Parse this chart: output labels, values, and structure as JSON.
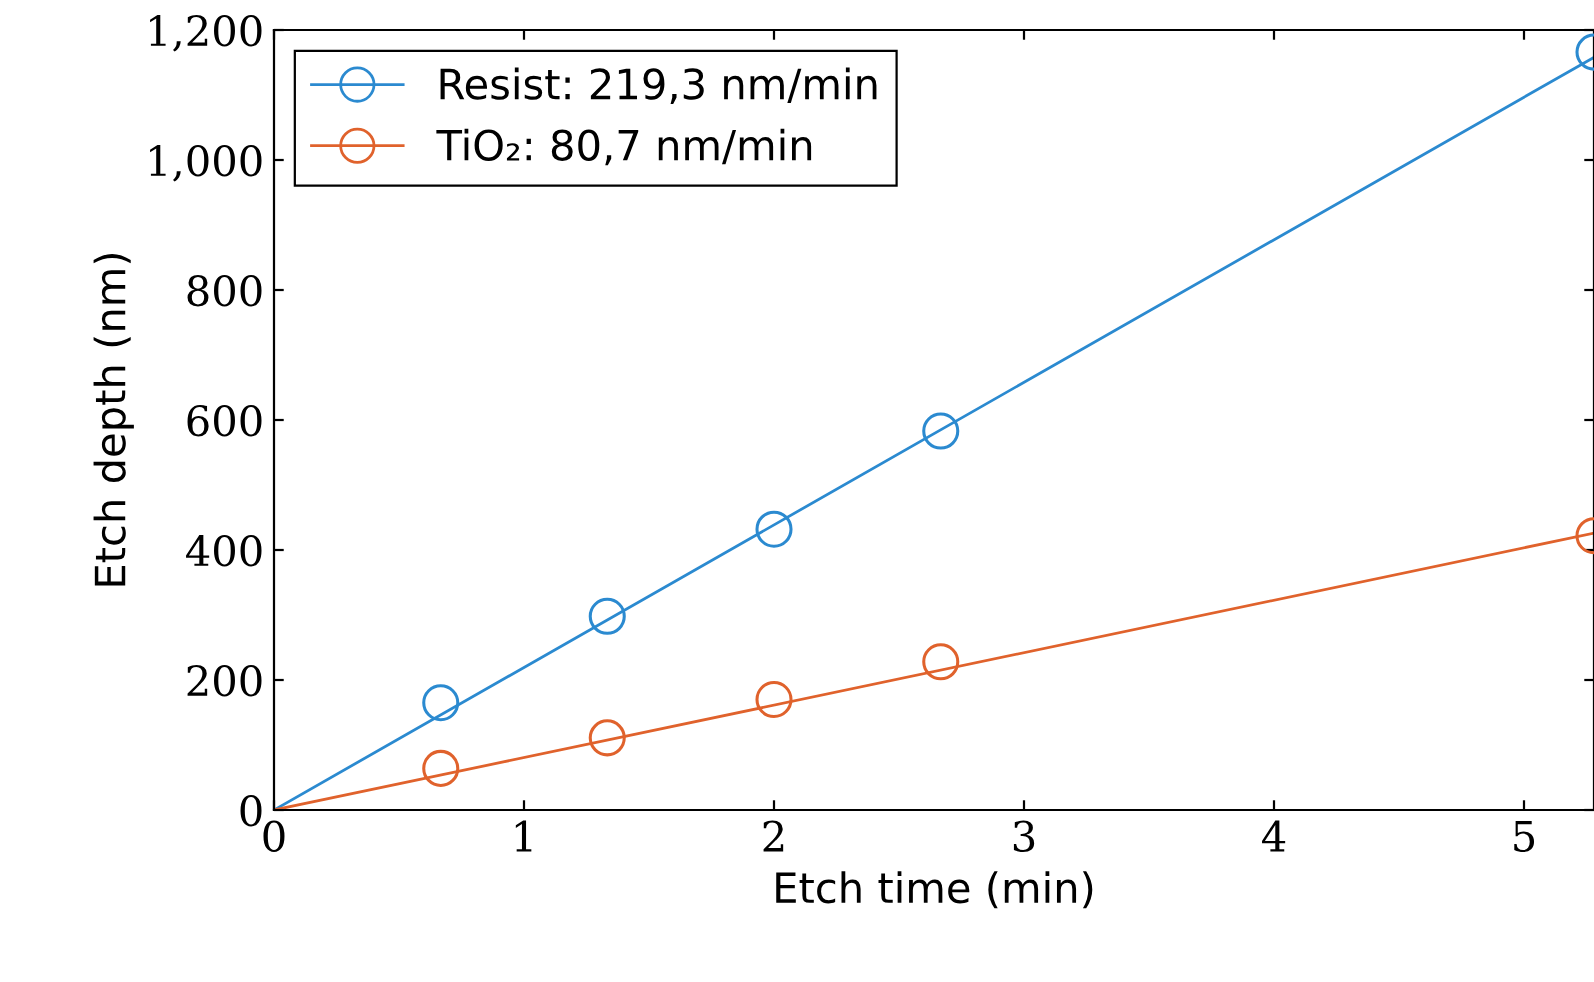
{
  "chart_data": {
    "type": "line",
    "xlabel": "Etch time (min)",
    "ylabel": "Etch depth (nm)",
    "xlim": [
      0,
      5.28
    ],
    "ylim": [
      0,
      1200
    ],
    "xticks": [
      0,
      1,
      2,
      3,
      4,
      5
    ],
    "yticks": [
      0,
      200,
      400,
      600,
      800,
      {
        "value": 1000,
        "label": "1,000"
      },
      {
        "value": 1200,
        "label": "1,200"
      }
    ],
    "grid": false,
    "legend": "top left",
    "series": [
      {
        "name": "Resist: 219,3 nm/min",
        "type": "scatter",
        "marker": "circle",
        "color": "#2b8ad0",
        "x": [
          0.667,
          1.333,
          2,
          2.667,
          5.28
        ],
        "values": [
          165,
          298,
          432,
          583,
          1166
        ]
      },
      {
        "name": "TiO₂: 80,7 nm/min",
        "type": "scatter",
        "marker": "circle",
        "color": "#e0622c",
        "x": [
          0.667,
          1.333,
          2,
          2.667,
          5.28
        ],
        "values": [
          64,
          111,
          170,
          228,
          422
        ]
      },
      {
        "color": "#2b8ad0",
        "x": [
          0,
          5.28
        ],
        "values": [
          0,
          1158
        ]
      },
      {
        "color": "#e0622c",
        "x": [
          0,
          5.28
        ],
        "values": [
          0,
          426
        ]
      }
    ]
  }
}
